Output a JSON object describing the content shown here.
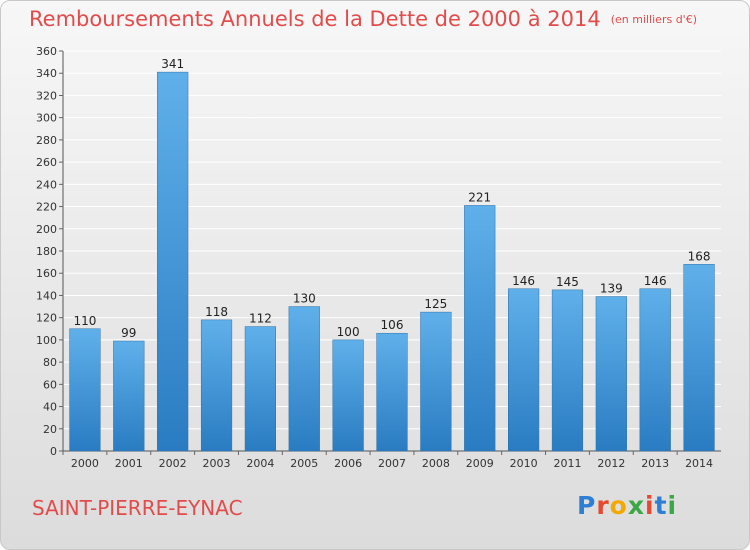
{
  "chart_data": {
    "type": "bar",
    "title": "Remboursements Annuels de la Dette de 2000 à 2014",
    "unit_note": "(en milliers d'€)",
    "categories": [
      "2000",
      "2001",
      "2002",
      "2003",
      "2004",
      "2005",
      "2006",
      "2007",
      "2008",
      "2009",
      "2010",
      "2011",
      "2012",
      "2013",
      "2014"
    ],
    "values": [
      110,
      99,
      341,
      118,
      112,
      130,
      100,
      106,
      125,
      221,
      146,
      145,
      139,
      146,
      168
    ],
    "ylim": [
      0,
      360
    ],
    "ytick_step": 20,
    "grid": true,
    "bar_color": "#3a91d6",
    "xlabel": "",
    "ylabel": ""
  },
  "footer": {
    "commune": "SAINT-PIERRE-EYNAC",
    "logo_letters": [
      "P",
      "r",
      "o",
      "x",
      "i",
      "t",
      "i"
    ],
    "logo_colors": [
      "#2d7fd4",
      "#e8482f",
      "#f2a900",
      "#3aa845",
      "#e8482f",
      "#2d7fd4",
      "#3aa845"
    ]
  },
  "colors": {
    "title": "#e34b4b",
    "grid": "#ffffff"
  }
}
